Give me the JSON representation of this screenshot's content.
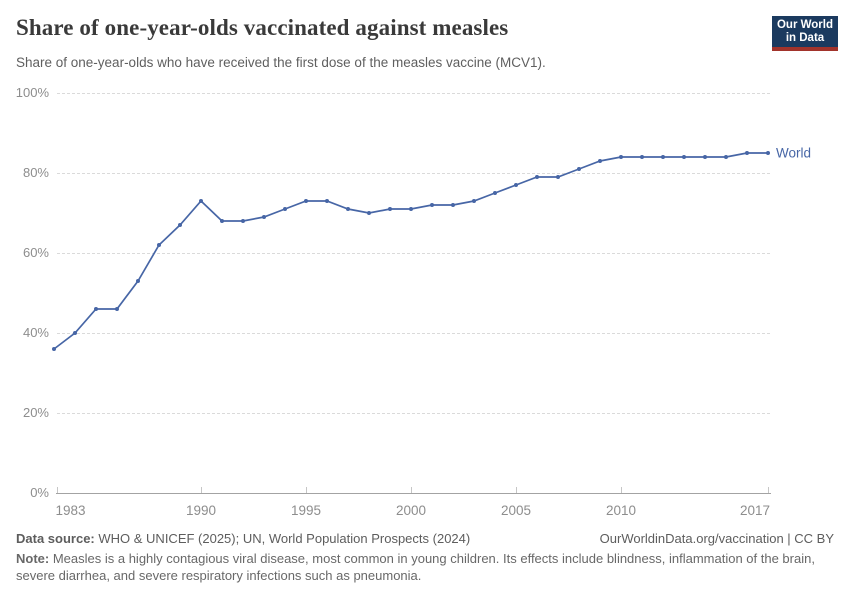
{
  "header": {
    "title": "Share of one-year-olds vaccinated against measles",
    "subtitle": "Share of one-year-olds who have received the first dose of the measles vaccine (MCV1).",
    "logo": {
      "line1": "Our World",
      "line2": "in Data",
      "bg_color": "#1b3a5f",
      "accent_color": "#a2332b"
    }
  },
  "chart_data": {
    "type": "line",
    "title": "Share of one-year-olds vaccinated against measles",
    "xlabel": "",
    "ylabel": "",
    "xlim": [
      1983,
      2017
    ],
    "ylim": [
      0,
      100
    ],
    "grid": "horizontal-dashed",
    "legend_position": "end-of-line",
    "end_label": "World",
    "x": [
      1983,
      1984,
      1985,
      1986,
      1987,
      1988,
      1989,
      1990,
      1991,
      1992,
      1993,
      1994,
      1995,
      1996,
      1997,
      1998,
      1999,
      2000,
      2001,
      2002,
      2003,
      2004,
      2005,
      2006,
      2007,
      2008,
      2009,
      2010,
      2011,
      2012,
      2013,
      2014,
      2015,
      2016,
      2017
    ],
    "series": [
      {
        "name": "World",
        "color": "#4766a6",
        "values": [
          36,
          40,
          46,
          46,
          53,
          62,
          67,
          73,
          68,
          68,
          69,
          71,
          73,
          73,
          71,
          70,
          71,
          71,
          72,
          72,
          73,
          75,
          77,
          79,
          79,
          81,
          83,
          84,
          84,
          84,
          84,
          84,
          84,
          85,
          85
        ]
      }
    ],
    "x_ticks": [
      {
        "year": 1983,
        "label": "1983"
      },
      {
        "year": 1990,
        "label": "1990"
      },
      {
        "year": 1995,
        "label": "1995"
      },
      {
        "year": 2000,
        "label": "2000"
      },
      {
        "year": 2005,
        "label": "2005"
      },
      {
        "year": 2010,
        "label": "2010"
      },
      {
        "year": 2017,
        "label": "2017"
      }
    ],
    "y_ticks": [
      {
        "value": 0,
        "label": "0%"
      },
      {
        "value": 20,
        "label": "20%"
      },
      {
        "value": 40,
        "label": "40%"
      },
      {
        "value": 60,
        "label": "60%"
      },
      {
        "value": 80,
        "label": "80%"
      },
      {
        "value": 100,
        "label": "100%"
      }
    ]
  },
  "footer": {
    "data_source_label": "Data source:",
    "data_source_text": "WHO & UNICEF (2025); UN, World Population Prospects (2024)",
    "attribution": "OurWorldinData.org/vaccination | CC BY",
    "note_label": "Note:",
    "note_text": "Measles is a highly contagious viral disease, most common in young children. Its effects include blindness, inflammation of the brain, severe diarrhea, and severe respiratory infections such as pneumonia."
  }
}
